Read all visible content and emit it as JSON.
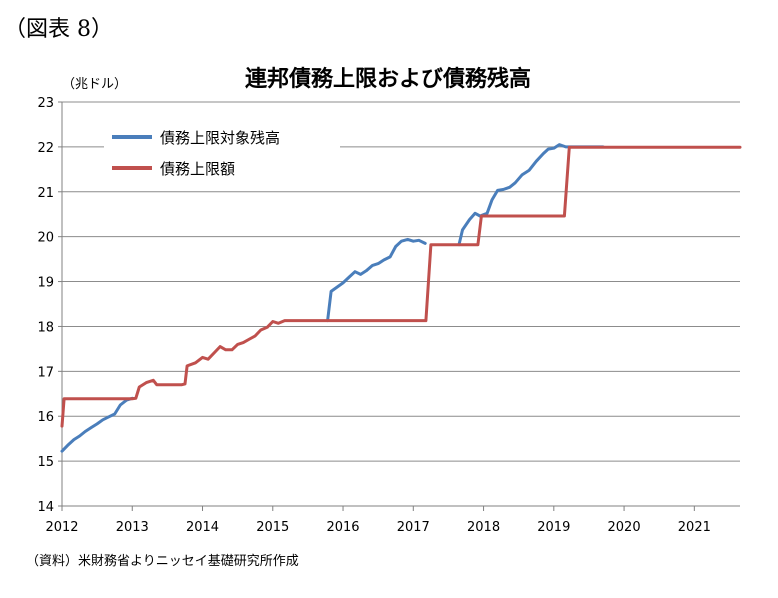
{
  "figure_label": "（図表 8）",
  "source_note": "（資料）米財務省よりニッセイ基礎研究所作成",
  "chart_data": {
    "type": "line",
    "title": "連邦債務上限および債務残高",
    "ylabel": "（兆ドル）",
    "xlabel": "",
    "ylim": [
      14,
      23
    ],
    "xlim": [
      2012,
      2021.65
    ],
    "y_ticks": [
      14,
      15,
      16,
      17,
      18,
      19,
      20,
      21,
      22,
      23
    ],
    "x_ticks": [
      "2012",
      "2013",
      "2014",
      "2015",
      "2016",
      "2017",
      "2018",
      "2019",
      "2020",
      "2021"
    ],
    "grid": "horizontal",
    "legend_position": "top-left",
    "series": [
      {
        "name": "債務上限対象残高",
        "color": "#4a7ebb",
        "points": [
          [
            2012.0,
            15.22
          ],
          [
            2012.08,
            15.35
          ],
          [
            2012.17,
            15.48
          ],
          [
            2012.25,
            15.56
          ],
          [
            2012.33,
            15.66
          ],
          [
            2012.42,
            15.75
          ],
          [
            2012.5,
            15.83
          ],
          [
            2012.58,
            15.92
          ],
          [
            2012.67,
            15.99
          ],
          [
            2012.75,
            16.05
          ],
          [
            2012.83,
            16.25
          ],
          [
            2012.92,
            16.36
          ],
          [
            2013.0,
            16.4
          ],
          null,
          [
            2015.78,
            18.13
          ],
          [
            2015.83,
            18.78
          ],
          [
            2015.92,
            18.88
          ],
          [
            2016.0,
            18.97
          ],
          [
            2016.08,
            19.09
          ],
          [
            2016.17,
            19.22
          ],
          [
            2016.25,
            19.16
          ],
          [
            2016.33,
            19.24
          ],
          [
            2016.42,
            19.36
          ],
          [
            2016.5,
            19.4
          ],
          [
            2016.58,
            19.48
          ],
          [
            2016.67,
            19.55
          ],
          [
            2016.75,
            19.78
          ],
          [
            2016.83,
            19.9
          ],
          [
            2016.92,
            19.94
          ],
          [
            2017.0,
            19.9
          ],
          [
            2017.08,
            19.92
          ],
          [
            2017.17,
            19.85
          ],
          null,
          [
            2017.65,
            19.82
          ],
          [
            2017.7,
            20.15
          ],
          [
            2017.8,
            20.38
          ],
          [
            2017.88,
            20.52
          ],
          [
            2017.95,
            20.46
          ],
          [
            2018.05,
            20.52
          ],
          [
            2018.12,
            20.82
          ],
          [
            2018.2,
            21.03
          ],
          [
            2018.28,
            21.05
          ],
          [
            2018.37,
            21.1
          ],
          [
            2018.45,
            21.2
          ],
          [
            2018.55,
            21.38
          ],
          [
            2018.65,
            21.48
          ],
          [
            2018.75,
            21.68
          ],
          [
            2018.85,
            21.85
          ],
          [
            2018.92,
            21.95
          ],
          [
            2019.0,
            21.97
          ],
          [
            2019.08,
            22.05
          ],
          [
            2019.17,
            22.0
          ],
          [
            2019.7,
            22.0
          ]
        ]
      },
      {
        "name": "債務上限額",
        "color": "#c0504d",
        "points": [
          [
            2012.0,
            15.78
          ],
          [
            2012.03,
            16.39
          ],
          [
            2013.0,
            16.39
          ],
          [
            2013.05,
            16.4
          ],
          [
            2013.1,
            16.65
          ],
          [
            2013.2,
            16.75
          ],
          [
            2013.3,
            16.8
          ],
          [
            2013.35,
            16.7
          ],
          [
            2013.5,
            16.7
          ],
          [
            2013.7,
            16.7
          ],
          [
            2013.75,
            16.72
          ],
          [
            2013.78,
            17.12
          ],
          [
            2013.9,
            17.19
          ],
          [
            2014.0,
            17.31
          ],
          [
            2014.08,
            17.27
          ],
          [
            2014.17,
            17.42
          ],
          [
            2014.25,
            17.55
          ],
          [
            2014.33,
            17.48
          ],
          [
            2014.42,
            17.48
          ],
          [
            2014.5,
            17.6
          ],
          [
            2014.58,
            17.64
          ],
          [
            2014.67,
            17.72
          ],
          [
            2014.75,
            17.79
          ],
          [
            2014.83,
            17.92
          ],
          [
            2014.92,
            17.98
          ],
          [
            2015.0,
            18.11
          ],
          [
            2015.08,
            18.07
          ],
          [
            2015.17,
            18.13
          ],
          [
            2015.5,
            18.13
          ],
          [
            2016.0,
            18.13
          ],
          [
            2017.18,
            18.13
          ],
          [
            2017.25,
            19.82
          ],
          [
            2017.5,
            19.82
          ],
          [
            2017.92,
            19.82
          ],
          [
            2017.97,
            20.46
          ],
          [
            2018.5,
            20.46
          ],
          [
            2019.15,
            20.46
          ],
          [
            2019.22,
            21.99
          ],
          [
            2020.0,
            21.99
          ],
          [
            2021.0,
            21.99
          ],
          [
            2021.65,
            21.99
          ]
        ]
      }
    ]
  }
}
